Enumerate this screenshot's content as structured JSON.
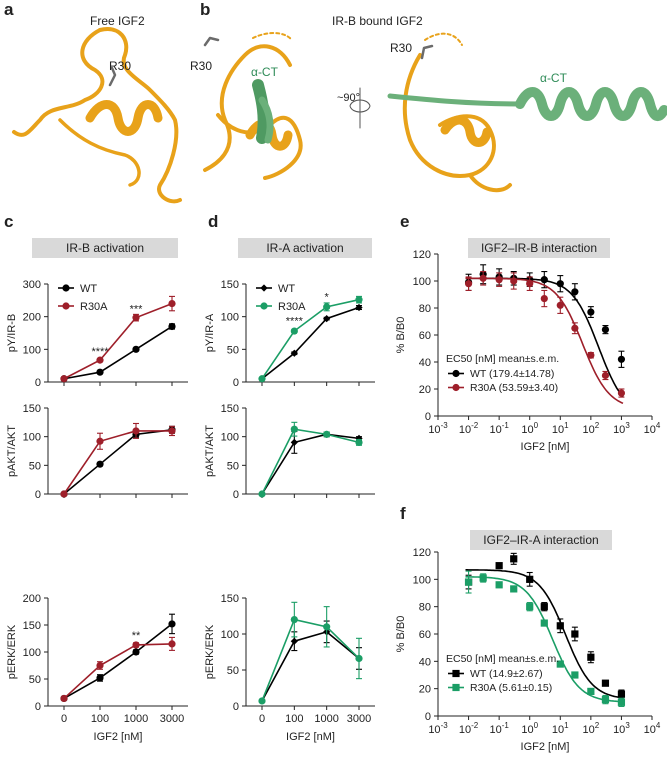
{
  "panel_labels": {
    "a": "a",
    "b": "b",
    "c": "c",
    "d": "d",
    "e": "e",
    "f": "f"
  },
  "structures": {
    "free_caption": "Free IGF2",
    "bound_caption": "IR-B bound IGF2",
    "r30_label": "R30",
    "act_label": "α-CT",
    "rotation_label": "~90°"
  },
  "colors": {
    "wt": "#000000",
    "r30a_red": "#9e1f2a",
    "r30a_green": "#1b9e66",
    "ribbon": "#e8a21a",
    "act": "#6bb07a"
  },
  "titles": {
    "c": "IR-B activation",
    "d": "IR-A activation",
    "e": "IGF2–IR-B interaction",
    "f": "IGF2–IR-A interaction"
  },
  "xlabel_nM": "IGF2 [nM]",
  "x_ticks": [
    "0",
    "100",
    "1000",
    "3000"
  ],
  "chart_data": [
    {
      "id": "c1",
      "type": "line",
      "ylabel": "pY/IR-B",
      "ylim": [
        0,
        300
      ],
      "yticks": [
        0,
        100,
        200,
        300
      ],
      "legend": true,
      "series": [
        {
          "name": "WT",
          "color": "#000000",
          "marker": "circle",
          "values": [
            10,
            30,
            100,
            170
          ],
          "err": [
            2,
            3,
            3,
            8
          ]
        },
        {
          "name": "R30A",
          "color": "#9e1f2a",
          "marker": "circle",
          "values": [
            10,
            67,
            197,
            240
          ],
          "err": [
            2,
            4,
            10,
            22
          ]
        }
      ],
      "annotations": [
        {
          "x": 1,
          "y": 82,
          "text": "****"
        },
        {
          "x": 2,
          "y": 212,
          "text": "***"
        }
      ]
    },
    {
      "id": "c2",
      "type": "line",
      "ylabel": "pAKT/AKT",
      "ylim": [
        0,
        150
      ],
      "yticks": [
        0,
        50,
        100,
        150
      ],
      "series": [
        {
          "name": "WT",
          "color": "#000000",
          "marker": "circle",
          "values": [
            0,
            52,
            104,
            112
          ],
          "err": [
            0,
            3,
            5,
            6
          ]
        },
        {
          "name": "R30A",
          "color": "#9e1f2a",
          "marker": "circle",
          "values": [
            0,
            92,
            110,
            110
          ],
          "err": [
            0,
            14,
            13,
            8
          ]
        }
      ]
    },
    {
      "id": "c3",
      "type": "line",
      "ylabel": "pERK/ERK",
      "ylim": [
        0,
        200
      ],
      "yticks": [
        0,
        50,
        100,
        150,
        200
      ],
      "series": [
        {
          "name": "WT",
          "color": "#000000",
          "marker": "circle",
          "values": [
            14,
            52,
            100,
            152
          ],
          "err": [
            2,
            6,
            4,
            18
          ]
        },
        {
          "name": "R30A",
          "color": "#9e1f2a",
          "marker": "circle",
          "values": [
            14,
            75,
            113,
            115
          ],
          "err": [
            2,
            7,
            4,
            12
          ]
        }
      ],
      "annotations": [
        {
          "x": 2,
          "y": 124,
          "text": "**"
        }
      ]
    },
    {
      "id": "d1",
      "type": "line",
      "ylabel": "pY/IR-A",
      "ylim": [
        0,
        150
      ],
      "yticks": [
        0,
        50,
        100,
        150
      ],
      "legend": true,
      "series": [
        {
          "name": "WT",
          "color": "#000000",
          "marker": "diamond",
          "values": [
            5,
            44,
            97,
            114
          ],
          "err": [
            1,
            2,
            2,
            3
          ]
        },
        {
          "name": "R30A",
          "color": "#1b9e66",
          "marker": "circle",
          "values": [
            5,
            78,
            115,
            126
          ],
          "err": [
            1,
            2,
            6,
            5
          ]
        }
      ],
      "annotations": [
        {
          "x": 1,
          "y": 88,
          "text": "****"
        },
        {
          "x": 2,
          "y": 125,
          "text": "*"
        }
      ]
    },
    {
      "id": "d2",
      "type": "line",
      "ylabel": "pAKT/AKT",
      "ylim": [
        0,
        150
      ],
      "yticks": [
        0,
        50,
        100,
        150
      ],
      "series": [
        {
          "name": "WT",
          "color": "#000000",
          "marker": "diamond",
          "values": [
            0,
            90,
            104,
            97
          ],
          "err": [
            0,
            19,
            4,
            3
          ]
        },
        {
          "name": "R30A",
          "color": "#1b9e66",
          "marker": "circle",
          "values": [
            0,
            113,
            104,
            90
          ],
          "err": [
            0,
            12,
            4,
            5
          ]
        }
      ]
    },
    {
      "id": "d3",
      "type": "line",
      "ylabel": "pERK/ERK",
      "ylim": [
        0,
        150
      ],
      "yticks": [
        0,
        50,
        100,
        150
      ],
      "series": [
        {
          "name": "WT",
          "color": "#000000",
          "marker": "diamond",
          "values": [
            7,
            90,
            103,
            66
          ],
          "err": [
            1,
            13,
            15,
            15
          ]
        },
        {
          "name": "R30A",
          "color": "#1b9e66",
          "marker": "circle",
          "values": [
            7,
            120,
            110,
            66
          ],
          "err": [
            1,
            24,
            28,
            28
          ]
        }
      ]
    },
    {
      "id": "e",
      "type": "scatter",
      "ylabel": "% B/B0",
      "xlabel": "IGF2 [nM]",
      "xscale": "log",
      "xlim": [
        -3,
        4
      ],
      "ylim": [
        0,
        120
      ],
      "yticks": [
        0,
        20,
        40,
        60,
        80,
        100,
        120
      ],
      "legend_title": "EC50 [nM] mean±s.e.m.",
      "series": [
        {
          "name": "WT",
          "legend": "WT (179.4±14.78)",
          "color": "#000000",
          "marker": "circle",
          "logIC50": 2.254,
          "top": 102,
          "bottom": 0,
          "x": [
            0.01,
            0.03,
            0.1,
            0.3,
            1,
            3,
            10,
            30,
            100,
            300,
            1000
          ],
          "y": [
            99,
            105,
            103,
            102,
            101,
            101,
            98,
            92,
            77,
            64,
            42
          ],
          "err": [
            6,
            7,
            6,
            5,
            5,
            6,
            6,
            6,
            4,
            3,
            6
          ]
        },
        {
          "name": "R30A",
          "legend": "R30A (53.59±3.40)",
          "color": "#9e1f2a",
          "marker": "circle",
          "logIC50": 1.729,
          "top": 102,
          "bottom": 5,
          "x": [
            0.01,
            0.03,
            0.1,
            0.3,
            1,
            3,
            10,
            30,
            100,
            300,
            1000
          ],
          "y": [
            98,
            102,
            101,
            100,
            98,
            87,
            82,
            65,
            45,
            30,
            17
          ],
          "err": [
            5,
            5,
            5,
            6,
            5,
            6,
            6,
            4,
            2,
            3,
            3
          ]
        }
      ]
    },
    {
      "id": "f",
      "type": "scatter",
      "ylabel": "% B/B0",
      "xlabel": "IGF2 [nM]",
      "xscale": "log",
      "xlim": [
        -3,
        4
      ],
      "ylim": [
        0,
        120
      ],
      "yticks": [
        0,
        20,
        40,
        60,
        80,
        100,
        120
      ],
      "legend_title": "EC50 [nM] mean±s.e.m.",
      "series": [
        {
          "name": "WT",
          "legend": "WT (14.9±2.67)",
          "color": "#000000",
          "marker": "square",
          "logIC50": 1.173,
          "top": 107,
          "bottom": 12,
          "x": [
            0.01,
            0.1,
            0.3,
            1,
            3,
            10,
            30,
            100,
            300,
            1000
          ],
          "y": [
            98,
            110,
            115,
            100,
            80,
            66,
            60,
            43,
            24,
            16
          ],
          "err": [
            5,
            1,
            4,
            5,
            3,
            5,
            5,
            4,
            2,
            3
          ]
        },
        {
          "name": "R30A",
          "legend": "R30A (5.61±0.15)",
          "color": "#1b9e66",
          "marker": "square",
          "logIC50": 0.749,
          "top": 102,
          "bottom": 10,
          "x": [
            0.01,
            0.03,
            0.1,
            0.3,
            1,
            3,
            10,
            30,
            100,
            300,
            1000
          ],
          "y": [
            98,
            101,
            96,
            93,
            80,
            68,
            38,
            30,
            18,
            12,
            10
          ],
          "err": [
            8,
            3,
            2,
            2,
            3,
            2,
            2,
            2,
            2,
            3,
            3
          ]
        }
      ]
    }
  ]
}
